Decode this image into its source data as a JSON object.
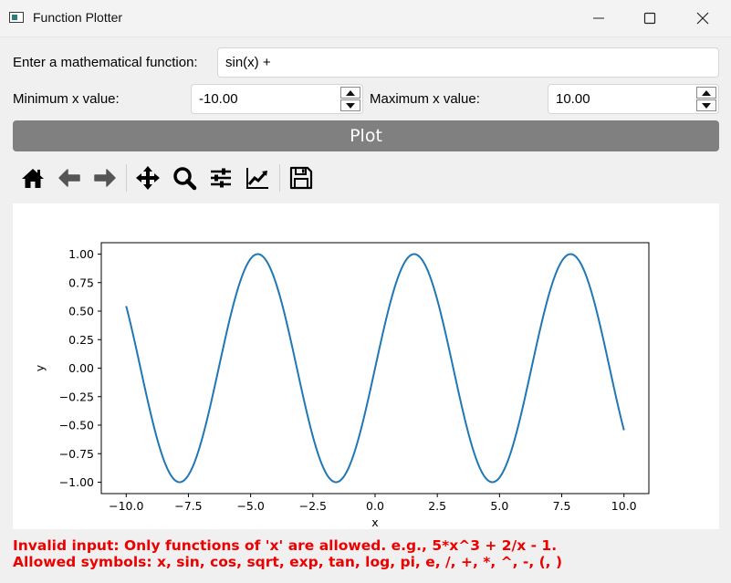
{
  "window": {
    "title": "Function Plotter",
    "icons": [
      "app-icon",
      "minimize-icon",
      "maximize-icon",
      "close-icon"
    ]
  },
  "form": {
    "function_label": "Enter a mathematical function:",
    "function_value": "sin(x) +",
    "min_label": "Minimum x value:",
    "min_value": "-10.00",
    "max_label": "Maximum x value:",
    "max_value": "10.00",
    "plot_button": "Plot"
  },
  "toolbar": {
    "icons": [
      "home-icon",
      "back-icon",
      "forward-icon",
      "pan-icon",
      "zoom-icon",
      "configure-subplots-icon",
      "edit-axis-icon",
      "save-icon"
    ]
  },
  "chart_data": {
    "type": "line",
    "function": "sin(x)",
    "x_range": [
      -10,
      10
    ],
    "xlabel": "x",
    "ylabel": "y",
    "xlim": [
      -11.0,
      11.0
    ],
    "ylim": [
      -1.1,
      1.1
    ],
    "xticks": [
      "−10.0",
      "−7.5",
      "−5.0",
      "−2.5",
      "0.0",
      "2.5",
      "5.0",
      "7.5",
      "10.0"
    ],
    "xtick_values": [
      -10,
      -7.5,
      -5,
      -2.5,
      0,
      2.5,
      5,
      7.5,
      10
    ],
    "yticks": [
      "1.00",
      "0.75",
      "0.50",
      "0.25",
      "0.00",
      "−0.25",
      "−0.50",
      "−0.75",
      "−1.00"
    ],
    "ytick_values": [
      1,
      0.75,
      0.5,
      0.25,
      0,
      -0.25,
      -0.5,
      -0.75,
      -1
    ],
    "series": [
      {
        "color": "#1f77b4"
      }
    ],
    "grid": false
  },
  "error": {
    "line1": "Invalid input: Only functions of 'x' are allowed. e.g., 5*x^3 + 2/x - 1.",
    "line2": "Allowed symbols: x, sin, cos, sqrt, exp, tan, log, pi, e, /, +, *, ^, -, (, )"
  },
  "colors": {
    "error": "#ee0000",
    "plot_button": "#808080",
    "line": "#1f77b4"
  }
}
